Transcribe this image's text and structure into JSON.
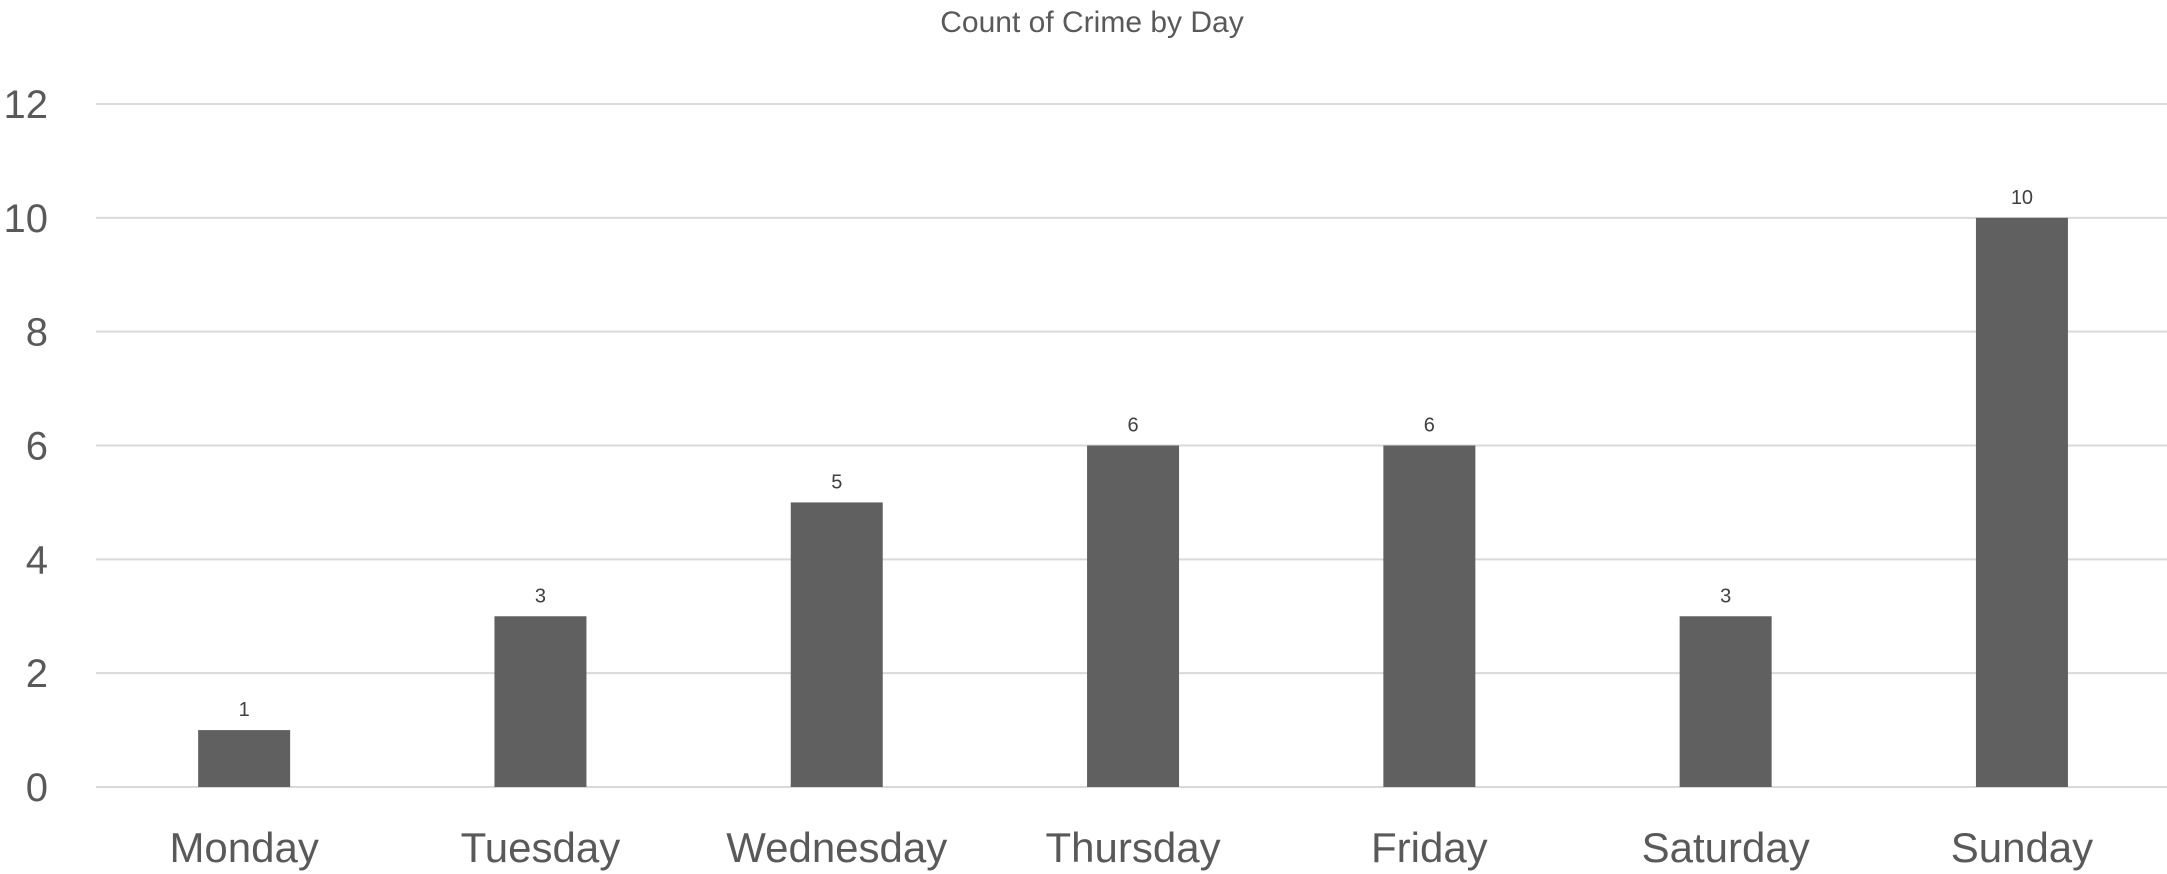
{
  "chart_data": {
    "type": "bar",
    "title": "Count of Crime by Day",
    "xlabel": "",
    "ylabel": "",
    "categories": [
      "Monday",
      "Tuesday",
      "Wednesday",
      "Thursday",
      "Friday",
      "Saturday",
      "Sunday"
    ],
    "series": [
      {
        "values": [
          1,
          3,
          5,
          6,
          6,
          3,
          10
        ],
        "color": "#606060"
      }
    ],
    "ylim": [
      0,
      12
    ],
    "yticks": [
      0,
      2,
      4,
      6,
      8,
      10,
      12
    ],
    "grid": true,
    "legend": "none",
    "data_labels": true
  }
}
